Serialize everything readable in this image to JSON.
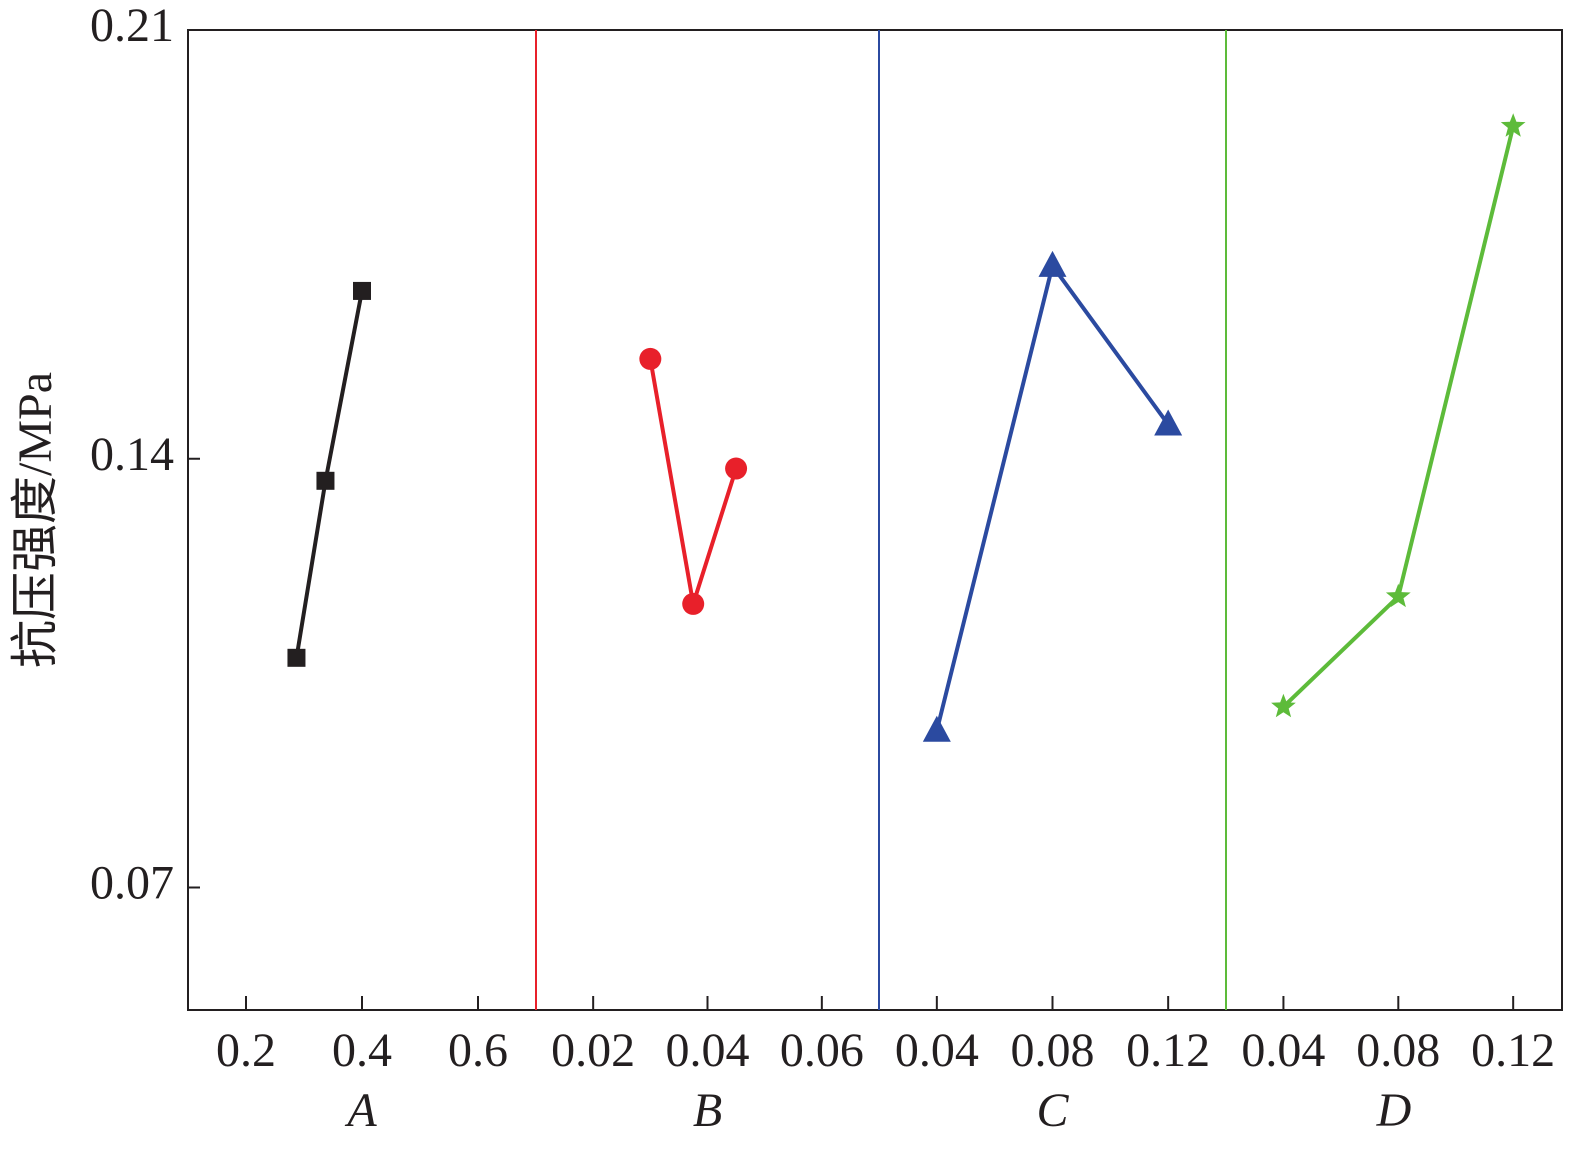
{
  "chart_data": {
    "type": "line",
    "ylabel": "抗压强度/MPa",
    "ylim": [
      0.05,
      0.21
    ],
    "yticks": [
      0.07,
      0.14,
      0.21
    ],
    "panels": [
      {
        "xlabel": "A",
        "color": "#231f20",
        "marker": "square",
        "xlim": [
          0.1,
          0.7
        ],
        "xticks": [
          0.2,
          0.4,
          0.6
        ],
        "x": [
          0.287,
          0.337,
          0.4
        ],
        "values": [
          0.1075,
          0.1364,
          0.1674
        ]
      },
      {
        "xlabel": "B",
        "color": "#e8202a",
        "marker": "circle",
        "xlim": [
          0.01,
          0.07
        ],
        "xticks": [
          0.02,
          0.04,
          0.06
        ],
        "x": [
          0.03,
          0.0375,
          0.045
        ],
        "values": [
          0.1563,
          0.1163,
          0.1384
        ]
      },
      {
        "xlabel": "C",
        "color": "#2b4aa0",
        "marker": "triangle",
        "xlim": [
          0.02,
          0.14
        ],
        "xticks": [
          0.04,
          0.08,
          0.12
        ],
        "x": [
          0.04,
          0.08,
          0.12
        ],
        "values": [
          0.0956,
          0.1715,
          0.1456
        ]
      },
      {
        "xlabel": "D",
        "color": "#5dbb3a",
        "marker": "star",
        "xlim": [
          0.02,
          0.137
        ],
        "xticks": [
          0.04,
          0.08,
          0.12
        ],
        "x": [
          0.04,
          0.08,
          0.12
        ],
        "values": [
          0.0995,
          0.1175,
          0.1943
        ]
      }
    ]
  }
}
